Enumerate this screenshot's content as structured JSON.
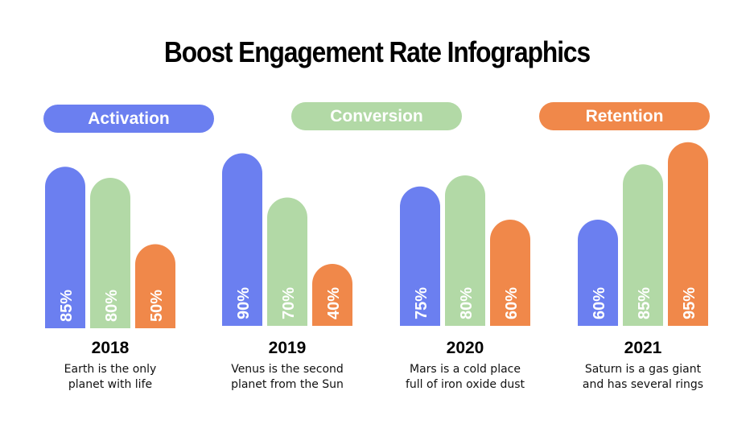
{
  "title": "Boost Engagement Rate Infographics",
  "colors": {
    "activation": "#6b7ff0",
    "conversion": "#b2d9a6",
    "retention": "#f0884a"
  },
  "chart_data": {
    "type": "bar",
    "title": "Boost Engagement Rate Infographics",
    "categories": [
      "2018",
      "2019",
      "2020",
      "2021"
    ],
    "series": [
      {
        "name": "Activation",
        "values": [
          85,
          90,
          75,
          60
        ]
      },
      {
        "name": "Conversion",
        "values": [
          80,
          70,
          80,
          85
        ]
      },
      {
        "name": "Retention",
        "values": [
          50,
          40,
          60,
          95
        ]
      }
    ],
    "data_labels": [
      [
        "85%",
        "80%",
        "50%"
      ],
      [
        "90%",
        "70%",
        "40%"
      ],
      [
        "75%",
        "80%",
        "60%"
      ],
      [
        "60%",
        "85%",
        "95%"
      ]
    ],
    "descriptions": [
      "Earth is the only planet with life",
      "Venus is the second planet from the Sun",
      "Mars is a cold place full of iron oxide dust",
      "Saturn is a gas giant and has several rings"
    ],
    "legend_placement": "top",
    "grid": false
  },
  "descriptions_lines": [
    [
      "Earth is the only",
      "planet with life"
    ],
    [
      "Venus is the second",
      "planet from the Sun"
    ],
    [
      "Mars is a cold place",
      "full of iron oxide dust"
    ],
    [
      "Saturn is a gas giant",
      "and has several rings"
    ]
  ]
}
